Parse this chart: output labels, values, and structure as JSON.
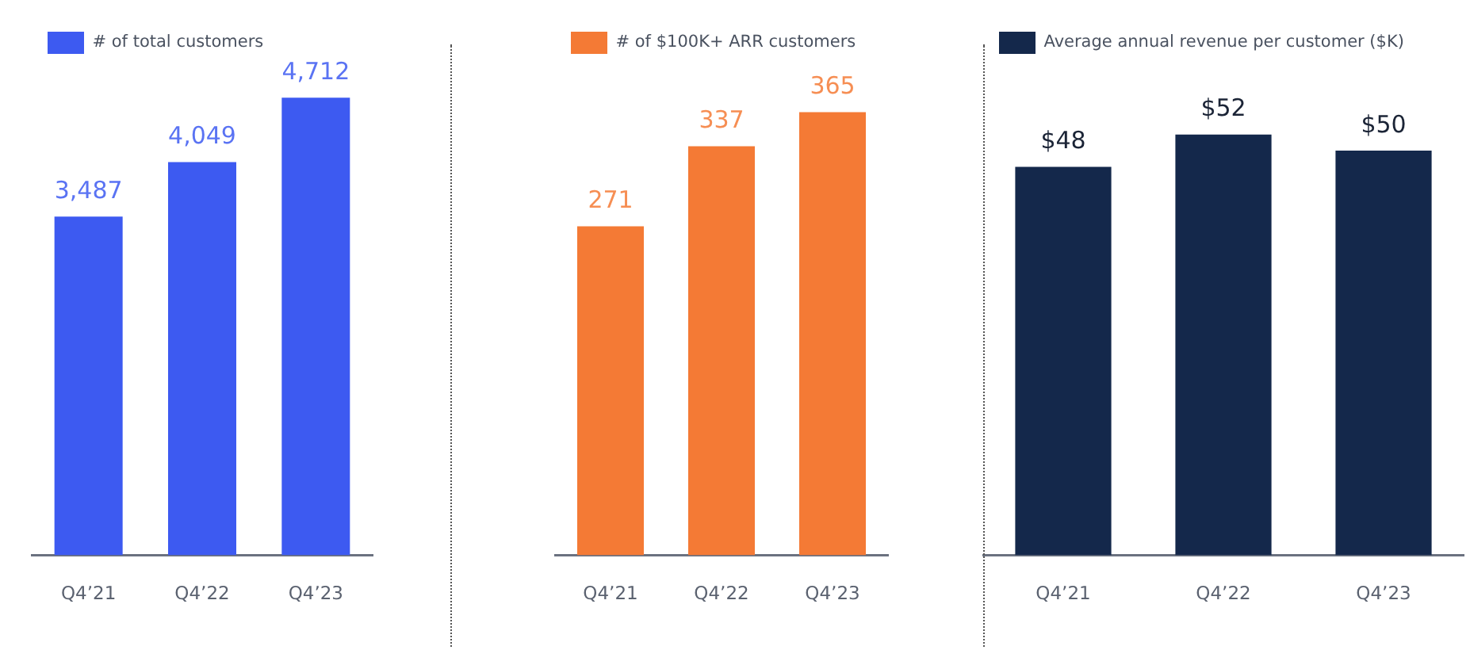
{
  "chart_data": [
    {
      "type": "bar",
      "categories": [
        "Q4’21",
        "Q4’22",
        "Q4’23"
      ],
      "series": [
        {
          "name": "# of total customers",
          "color": "#3d5af1",
          "values": [
            3487,
            4049,
            4712
          ],
          "value_labels": [
            "3,487",
            "4,049",
            "4,712"
          ]
        }
      ],
      "legend": "top left"
    },
    {
      "type": "bar",
      "categories": [
        "Q4’21",
        "Q4’22",
        "Q4’23"
      ],
      "series": [
        {
          "name": "# of $100K+ ARR customers",
          "color": "#f47a35",
          "values": [
            271,
            337,
            365
          ],
          "value_labels": [
            "271",
            "337",
            "365"
          ]
        }
      ],
      "legend": "top left"
    },
    {
      "type": "bar",
      "categories": [
        "Q4’21",
        "Q4’22",
        "Q4’23"
      ],
      "series": [
        {
          "name": "Average annual revenue per customer ($K)",
          "color": "#14284b",
          "values": [
            48,
            52,
            50
          ],
          "value_labels": [
            "$48",
            "$52",
            "$50"
          ]
        }
      ],
      "legend": "top left"
    }
  ]
}
